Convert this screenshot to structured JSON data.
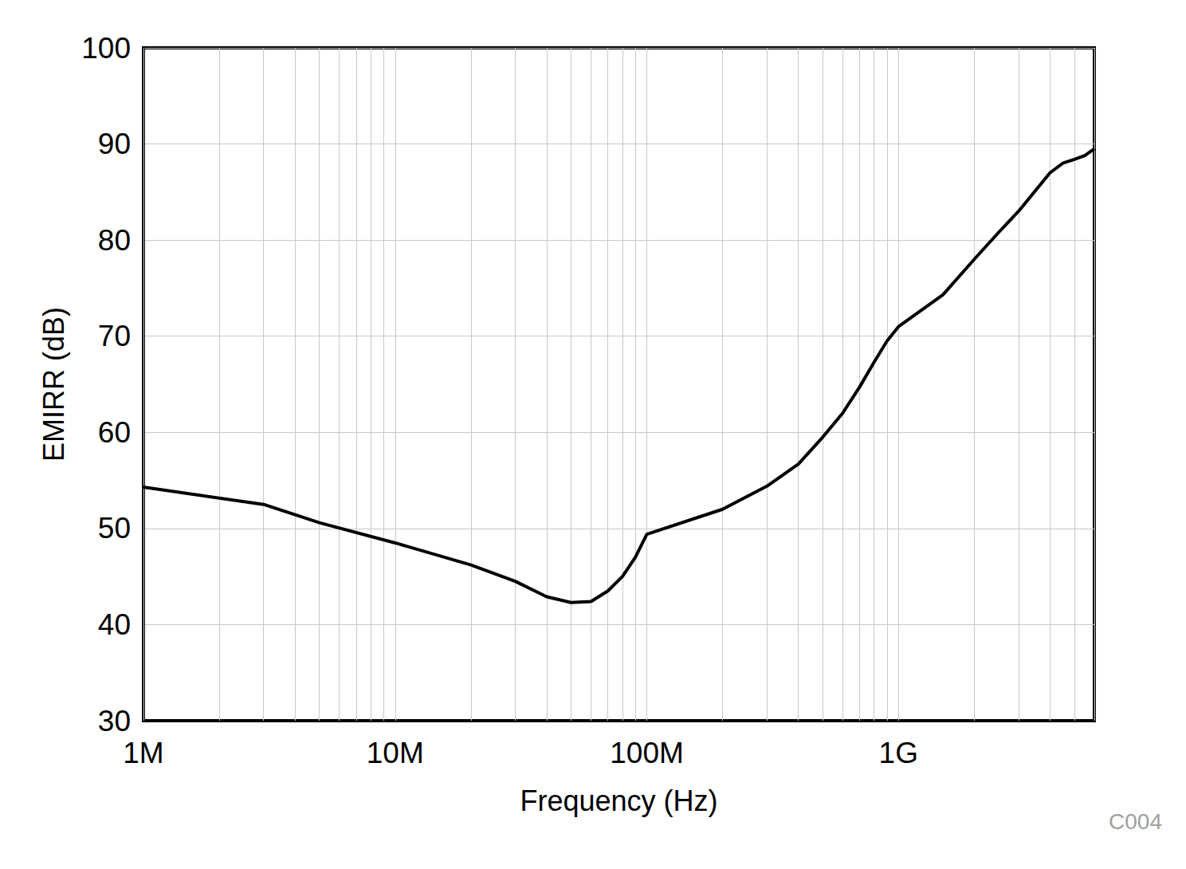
{
  "chart_data": {
    "type": "line",
    "x_label": "Frequency (Hz)",
    "y_label": "EMIRR (dB)",
    "annotations": [
      "C004"
    ],
    "x": [
      1000000,
      3000000,
      5000000,
      10000000,
      20000000,
      30000000,
      40000000,
      50000000,
      60000000,
      70000000,
      80000000,
      90000000,
      100000000,
      200000000,
      300000000,
      400000000,
      500000000,
      600000000,
      700000000,
      800000000,
      900000000,
      1000000000,
      1500000000,
      2000000000,
      2500000000,
      3000000000,
      4000000000,
      4500000000,
      5000000000,
      5500000000,
      6000000000
    ],
    "values": [
      54.3,
      52.5,
      50.6,
      48.5,
      46.2,
      44.5,
      42.9,
      42.3,
      42.4,
      43.5,
      45.0,
      47.0,
      49.4,
      52.0,
      54.4,
      56.7,
      59.5,
      62.0,
      64.7,
      67.3,
      69.5,
      71.0,
      74.3,
      78.0,
      80.8,
      83.0,
      87.0,
      88.0,
      88.4,
      88.8,
      89.5
    ],
    "color": "#000000",
    "log": "x",
    "grid": true,
    "xlim": [
      1000000,
      6000000000
    ],
    "xticks": [
      {
        "value": 1000000,
        "label": "1M"
      },
      {
        "value": 10000000,
        "label": "10M"
      },
      {
        "value": 100000000,
        "label": "100M"
      },
      {
        "value": 1000000000,
        "label": "1G"
      }
    ],
    "ylim": [
      30,
      100
    ],
    "yticks": [
      30,
      40,
      50,
      60,
      70,
      80,
      90,
      100
    ]
  }
}
